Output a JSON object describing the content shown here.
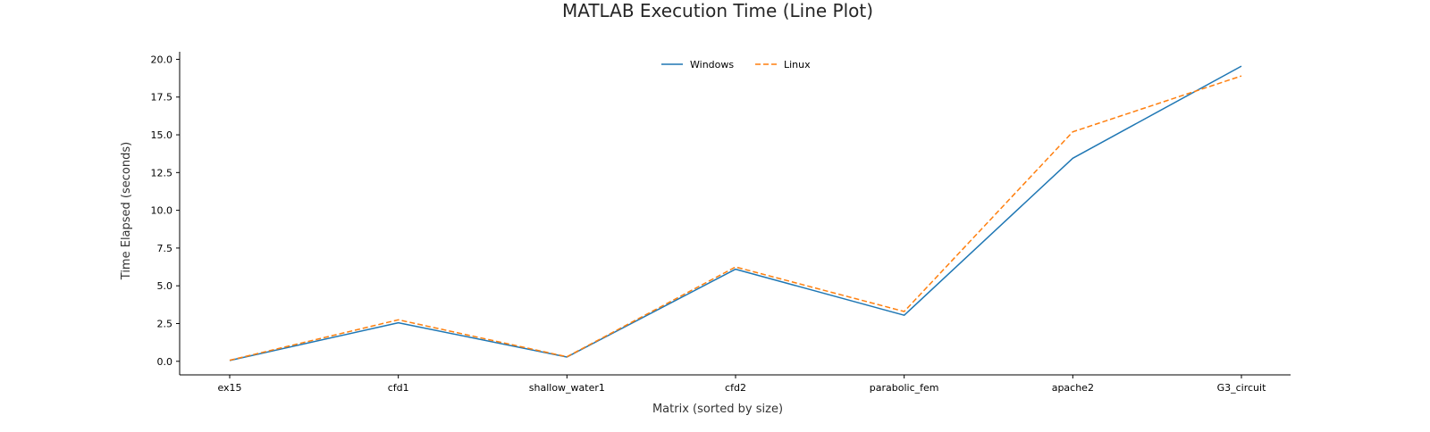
{
  "chart_data": {
    "type": "line",
    "title": "MATLAB Execution Time (Line Plot)",
    "xlabel": "Matrix (sorted by size)",
    "ylabel": "Time Elapsed (seconds)",
    "categories": [
      "ex15",
      "cfd1",
      "shallow_water1",
      "cfd2",
      "parabolic_fem",
      "apache2",
      "G3_circuit"
    ],
    "ylim": [
      -0.9,
      20.5
    ],
    "yticks": [
      0.0,
      2.5,
      5.0,
      7.5,
      10.0,
      12.5,
      15.0,
      17.5,
      20.0
    ],
    "ytick_labels": [
      "0.0",
      "2.5",
      "5.0",
      "7.5",
      "10.0",
      "12.5",
      "15.0",
      "17.5",
      "20.0"
    ],
    "grid": false,
    "legend_position": "top-center",
    "series": [
      {
        "name": "Windows",
        "color": "#1f77b4",
        "style": "solid",
        "values": [
          0.05,
          2.55,
          0.28,
          6.1,
          3.05,
          13.45,
          19.55
        ]
      },
      {
        "name": "Linux",
        "color": "#ff7f0e",
        "style": "dashed",
        "values": [
          0.07,
          2.75,
          0.3,
          6.25,
          3.3,
          15.2,
          18.9
        ]
      }
    ]
  }
}
